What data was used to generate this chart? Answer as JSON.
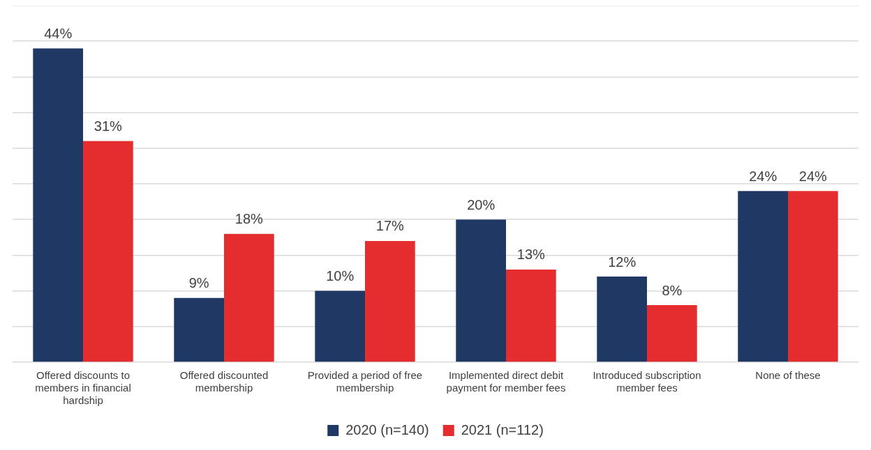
{
  "chart_data": {
    "type": "bar",
    "categories": [
      "Offered discounts to members in financial hardship",
      "Offered discounted membership",
      "Provided a period of free membership",
      "Implemented direct debit payment for member fees",
      "Introduced subscription member fees",
      "None of these"
    ],
    "series": [
      {
        "name": "2020 (n=140)",
        "color": "#203864",
        "values": [
          44,
          9,
          10,
          20,
          12,
          24
        ],
        "value_labels": [
          "44%",
          "9%",
          "10%",
          "20%",
          "12%",
          "24%"
        ]
      },
      {
        "name": "2021 (n=112)",
        "color": "#e52d2f",
        "values": [
          31,
          18,
          17,
          13,
          8,
          24
        ],
        "value_labels": [
          "31%",
          "18%",
          "17%",
          "13%",
          "8%",
          "24%"
        ]
      }
    ],
    "ylim": [
      0,
      50
    ],
    "yticks": [
      {
        "value": 0,
        "label": null
      },
      {
        "value": 5,
        "label": null
      },
      {
        "value": 10,
        "label": null
      },
      {
        "value": 15,
        "label": null
      },
      {
        "value": 20,
        "label": null
      },
      {
        "value": 25,
        "label": null
      },
      {
        "value": 30,
        "label": null
      },
      {
        "value": 35,
        "label": null
      },
      {
        "value": 40,
        "label": null
      },
      {
        "value": 45,
        "label": null
      },
      {
        "value": 50,
        "label": null
      }
    ],
    "grid": "y",
    "legend": "bottom",
    "tick_labels": "x"
  }
}
